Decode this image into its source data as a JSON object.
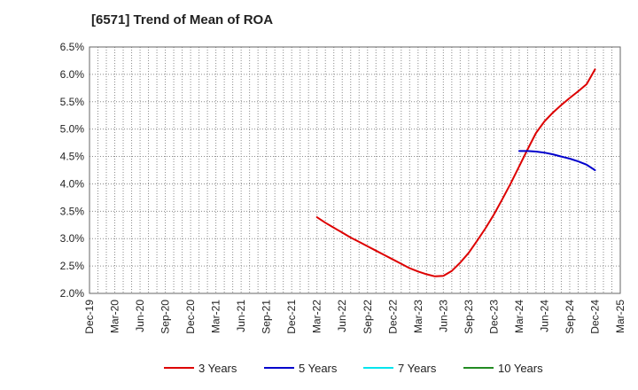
{
  "chart_data": {
    "type": "line",
    "title": "[6571]  Trend of Mean of ROA",
    "xlabel": "",
    "ylabel": "",
    "x_ticks": [
      "Dec-19",
      "Mar-20",
      "Jun-20",
      "Sep-20",
      "Dec-20",
      "Mar-21",
      "Jun-21",
      "Sep-21",
      "Dec-21",
      "Mar-22",
      "Jun-22",
      "Sep-22",
      "Dec-22",
      "Mar-23",
      "Jun-23",
      "Sep-23",
      "Dec-23",
      "Mar-24",
      "Jun-24",
      "Sep-24",
      "Dec-24",
      "Mar-25"
    ],
    "y_ticks": [
      "2.0%",
      "2.5%",
      "3.0%",
      "3.5%",
      "4.0%",
      "4.5%",
      "5.0%",
      "5.5%",
      "6.0%",
      "6.5%"
    ],
    "ylim": [
      2.0,
      6.5
    ],
    "grid": true,
    "legend_position": "bottom",
    "series": [
      {
        "name": "3 Years",
        "color": "#dd0000",
        "x": [
          "Mar-22",
          "Apr-22",
          "May-22",
          "Jun-22",
          "Jul-22",
          "Aug-22",
          "Sep-22",
          "Oct-22",
          "Nov-22",
          "Dec-22",
          "Jan-23",
          "Feb-23",
          "Mar-23",
          "Apr-23",
          "May-23",
          "Jun-23",
          "Jul-23",
          "Aug-23",
          "Sep-23",
          "Oct-23",
          "Nov-23",
          "Dec-23",
          "Jan-24",
          "Feb-24",
          "Mar-24",
          "Apr-24",
          "May-24",
          "Jun-24",
          "Jul-24",
          "Aug-24",
          "Sep-24",
          "Oct-24",
          "Nov-24",
          "Dec-24"
        ],
        "values": [
          3.39,
          3.29,
          3.2,
          3.11,
          3.02,
          2.94,
          2.86,
          2.78,
          2.7,
          2.62,
          2.54,
          2.46,
          2.4,
          2.35,
          2.31,
          2.32,
          2.41,
          2.56,
          2.74,
          2.96,
          3.19,
          3.44,
          3.72,
          4.01,
          4.32,
          4.63,
          4.93,
          5.14,
          5.3,
          5.44,
          5.57,
          5.69,
          5.82,
          6.09
        ]
      },
      {
        "name": "5 Years",
        "color": "#0000cc",
        "x": [
          "Mar-24",
          "Apr-24",
          "May-24",
          "Jun-24",
          "Jul-24",
          "Aug-24",
          "Sep-24",
          "Oct-24",
          "Nov-24",
          "Dec-24"
        ],
        "values": [
          4.6,
          4.6,
          4.59,
          4.57,
          4.54,
          4.5,
          4.46,
          4.41,
          4.35,
          4.25
        ]
      },
      {
        "name": "7 Years",
        "color": "#00e5ee",
        "x": [],
        "values": []
      },
      {
        "name": "10 Years",
        "color": "#228b22",
        "x": [],
        "values": []
      }
    ]
  }
}
